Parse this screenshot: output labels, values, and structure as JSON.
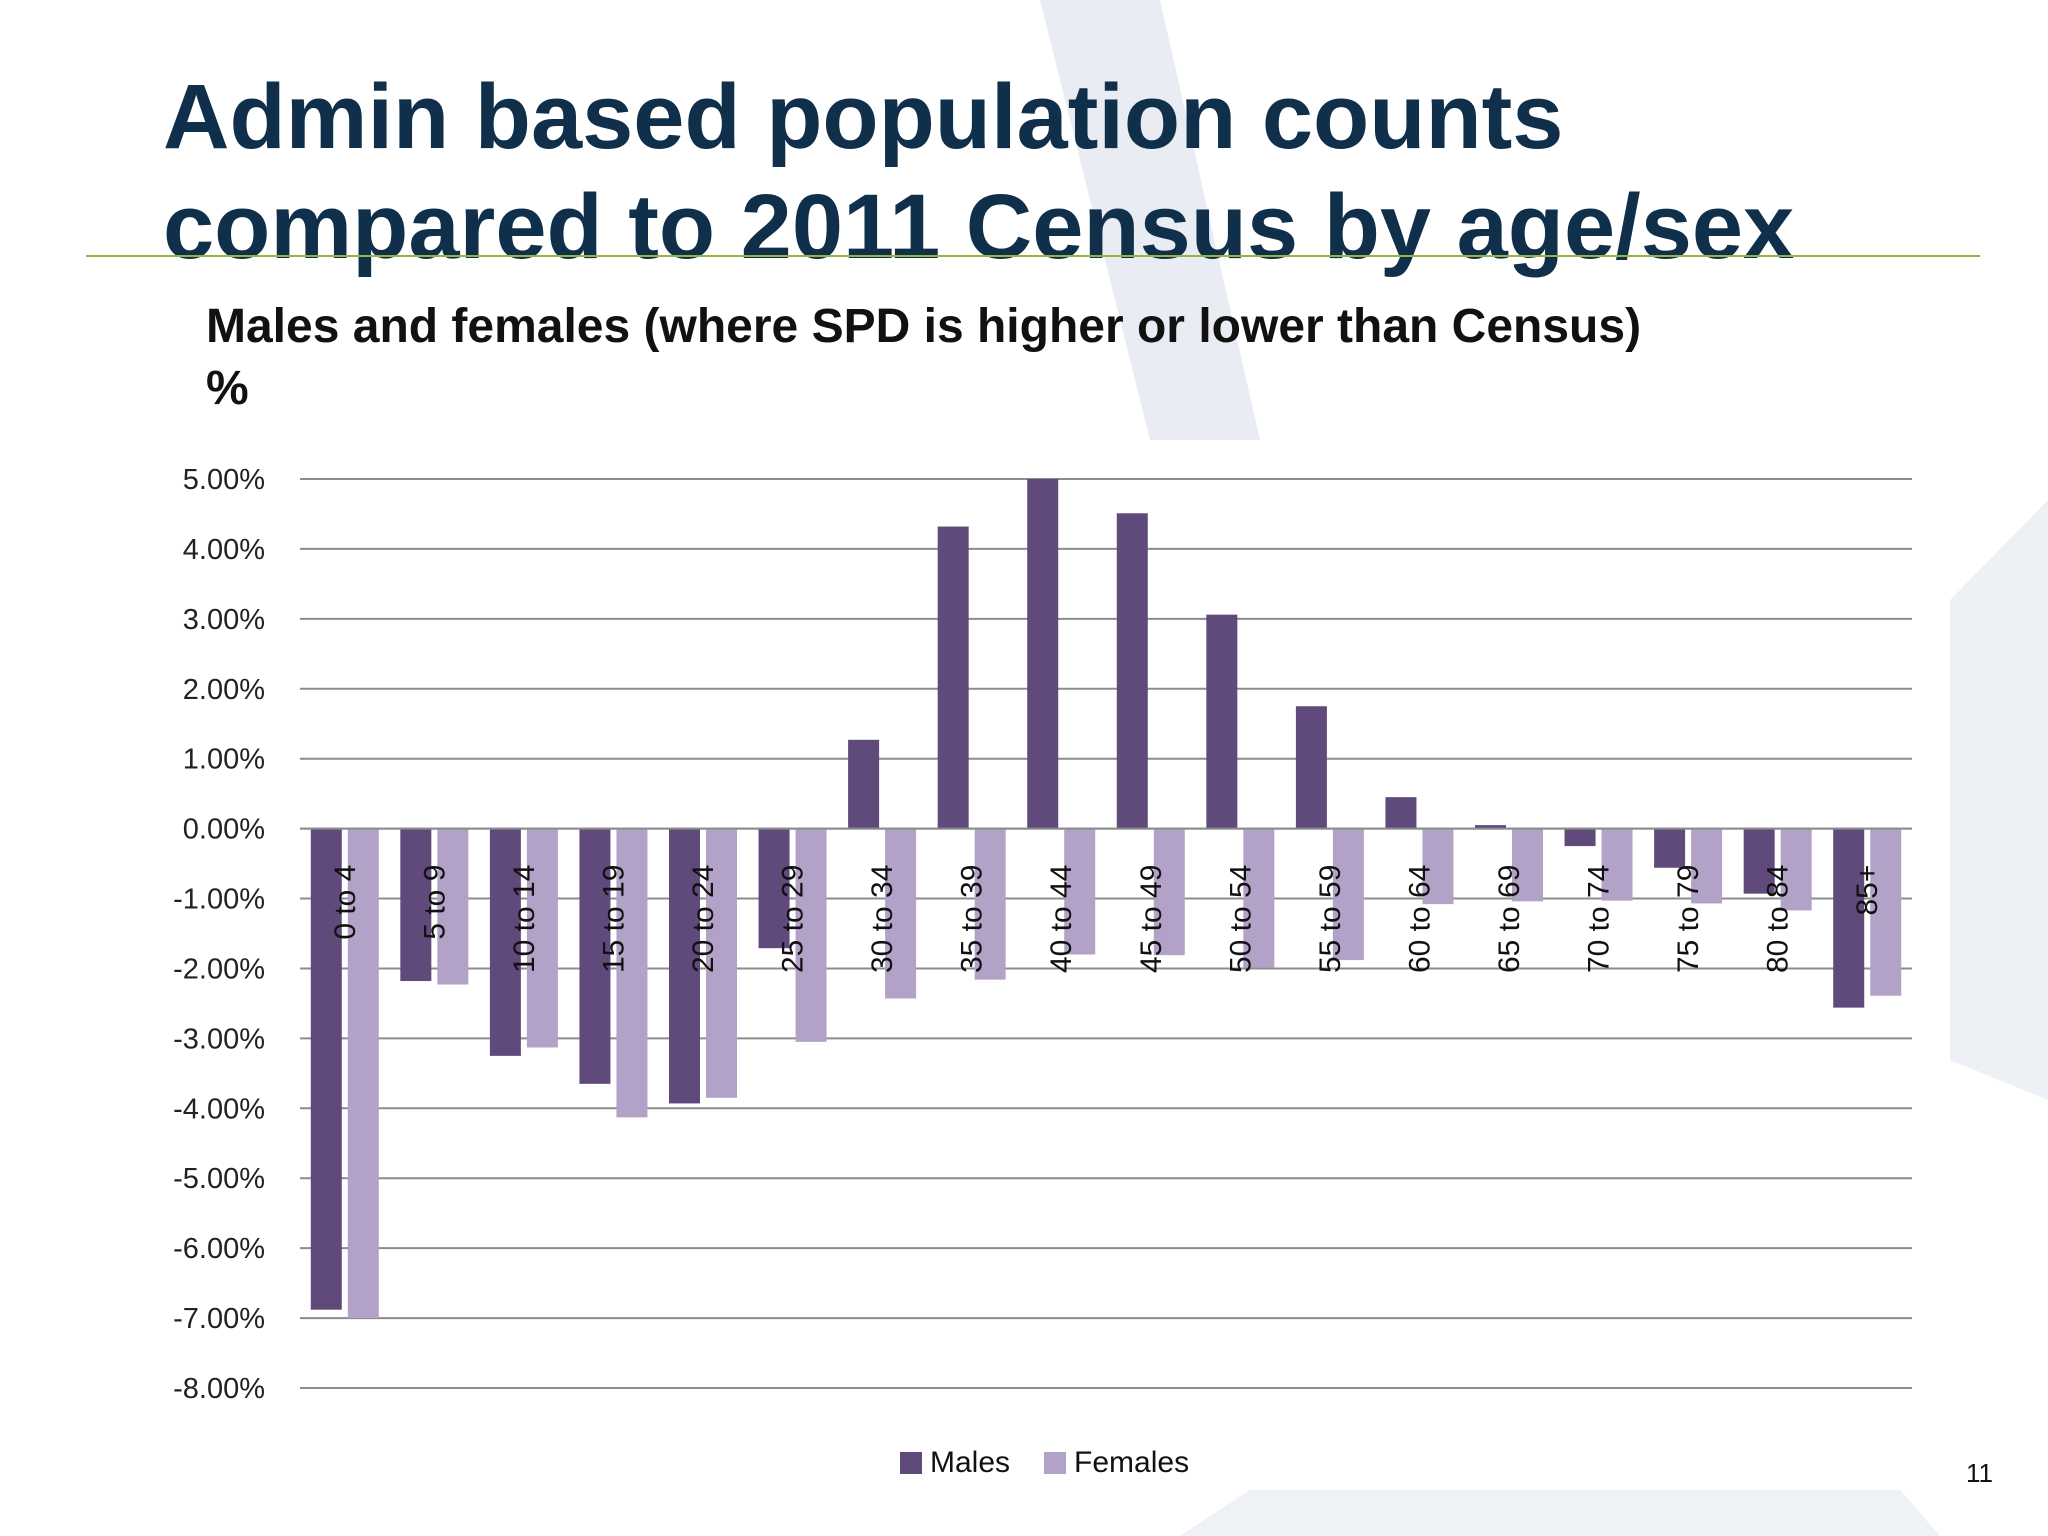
{
  "slide": {
    "title_line1": "Admin based population counts",
    "title_line2": "compared to 2011 Census by age/sex",
    "page_number": "11"
  },
  "colors": {
    "title": "#0f2f4a",
    "rule": "#98b341",
    "males": "#604a7b",
    "females": "#b3a2c7",
    "gridline": "#8c8c8c",
    "background_decoration": "#e6eaf1"
  },
  "chart_data": {
    "type": "bar",
    "title_line1": "Males and females (where SPD is higher or lower than Census)",
    "title_line2": "%",
    "xlabel": "",
    "ylabel": "",
    "ylim": [
      -0.08,
      0.05
    ],
    "ytick_step": 0.01,
    "ytick_labels": [
      "5.00%",
      "4.00%",
      "3.00%",
      "2.00%",
      "1.00%",
      "0.00%",
      "-1.00%",
      "-2.00%",
      "-3.00%",
      "-4.00%",
      "-5.00%",
      "-6.00%",
      "-7.00%",
      "-8.00%"
    ],
    "grid": true,
    "legend_position": "bottom",
    "categories": [
      "0 to 4",
      "5 to 9",
      "10 to 14",
      "15 to 19",
      "20 to 24",
      "25 to 29",
      "30 to 34",
      "35 to 39",
      "40 to 44",
      "45 to 49",
      "50 to 54",
      "55 to 59",
      "60 to 64",
      "65 to 69",
      "70 to 74",
      "75 to 79",
      "80 to 84",
      "85+"
    ],
    "series": [
      {
        "name": "Males",
        "values": [
          -0.0688,
          -0.0218,
          -0.0325,
          -0.0365,
          -0.0393,
          -0.0171,
          0.0127,
          0.0432,
          0.05,
          0.0451,
          0.0306,
          0.0175,
          0.0045,
          0.0005,
          -0.0025,
          -0.0056,
          -0.0093,
          -0.0256
        ]
      },
      {
        "name": "Females",
        "values": [
          -0.07,
          -0.0223,
          -0.0313,
          -0.0413,
          -0.0385,
          -0.0305,
          -0.0243,
          -0.0216,
          -0.018,
          -0.0181,
          -0.0199,
          -0.0188,
          -0.0108,
          -0.0104,
          -0.0103,
          -0.0107,
          -0.0117,
          -0.0239
        ]
      }
    ]
  }
}
